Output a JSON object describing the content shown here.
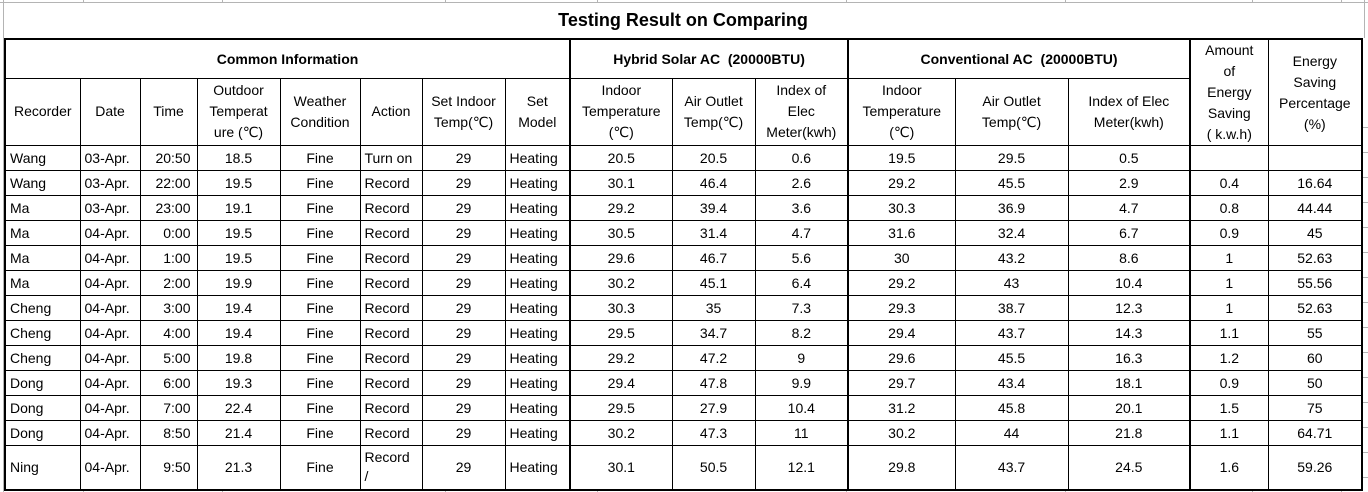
{
  "title": "Testing Result on Comparing",
  "sections": {
    "common": "Common Information",
    "hybrid": "Hybrid Solar AC  (20000BTU)",
    "conventional": "Conventional AC  (20000BTU)",
    "amount": "Amount\nof\nEnergy\nSaving\n( k.w.h)",
    "percentage": "Energy\nSaving\nPercentage\n(%)"
  },
  "columns": [
    "Recorder",
    "Date",
    "Time",
    "Outdoor\nTemperat\nure (℃)",
    "Weather\nCondition",
    "Action",
    "Set Indoor\nTemp(℃)",
    "Set\nModel",
    "Indoor\nTemperature\n(℃)",
    "Air Outlet\nTemp(℃)",
    "Index of\nElec\nMeter(kwh)",
    "Indoor\nTemperature\n(℃)",
    "Air Outlet\nTemp(℃)",
    "Index of Elec\nMeter(kwh)"
  ],
  "rows": [
    [
      "Wang",
      "03-Apr.",
      "20:50",
      "18.5",
      "Fine",
      "Turn on",
      "29",
      "Heating",
      "20.5",
      "20.5",
      "0.6",
      "19.5",
      "29.5",
      "0.5",
      "",
      ""
    ],
    [
      "Wang",
      "03-Apr.",
      "22:00",
      "19.5",
      "Fine",
      "Record",
      "29",
      "Heating",
      "30.1",
      "46.4",
      "2.6",
      "29.2",
      "45.5",
      "2.9",
      "0.4",
      "16.64"
    ],
    [
      "Ma",
      "03-Apr.",
      "23:00",
      "19.1",
      "Fine",
      "Record",
      "29",
      "Heating",
      "29.2",
      "39.4",
      "3.6",
      "30.3",
      "36.9",
      "4.7",
      "0.8",
      "44.44"
    ],
    [
      "Ma",
      "04-Apr.",
      "0:00",
      "19.5",
      "Fine",
      "Record",
      "29",
      "Heating",
      "30.5",
      "31.4",
      "4.7",
      "31.6",
      "32.4",
      "6.7",
      "0.9",
      "45"
    ],
    [
      "Ma",
      "04-Apr.",
      "1:00",
      "19.5",
      "Fine",
      "Record",
      "29",
      "Heating",
      "29.6",
      "46.7",
      "5.6",
      "30",
      "43.2",
      "8.6",
      "1",
      "52.63"
    ],
    [
      "Ma",
      "04-Apr.",
      "2:00",
      "19.9",
      "Fine",
      "Record",
      "29",
      "Heating",
      "30.2",
      "45.1",
      "6.4",
      "29.2",
      "43",
      "10.4",
      "1",
      "55.56"
    ],
    [
      "Cheng",
      "04-Apr.",
      "3:00",
      "19.4",
      "Fine",
      "Record",
      "29",
      "Heating",
      "30.3",
      "35",
      "7.3",
      "29.3",
      "38.7",
      "12.3",
      "1",
      "52.63"
    ],
    [
      "Cheng",
      "04-Apr.",
      "4:00",
      "19.4",
      "Fine",
      "Record",
      "29",
      "Heating",
      "29.5",
      "34.7",
      "8.2",
      "29.4",
      "43.7",
      "14.3",
      "1.1",
      "55"
    ],
    [
      "Cheng",
      "04-Apr.",
      "5:00",
      "19.8",
      "Fine",
      "Record",
      "29",
      "Heating",
      "29.2",
      "47.2",
      "9",
      "29.6",
      "45.5",
      "16.3",
      "1.2",
      "60"
    ],
    [
      "Dong",
      "04-Apr.",
      "6:00",
      "19.3",
      "Fine",
      "Record",
      "29",
      "Heating",
      "29.4",
      "47.8",
      "9.9",
      "29.7",
      "43.4",
      "18.1",
      "0.9",
      "50"
    ],
    [
      "Dong",
      "04-Apr.",
      "7:00",
      "22.4",
      "Fine",
      "Record",
      "29",
      "Heating",
      "29.5",
      "27.9",
      "10.4",
      "31.2",
      "45.8",
      "20.1",
      "1.5",
      "75"
    ],
    [
      "Dong",
      "04-Apr.",
      "8:50",
      "21.4",
      "Fine",
      "Record",
      "29",
      "Heating",
      "30.2",
      "47.3",
      "11",
      "30.2",
      "44",
      "21.8",
      "1.1",
      "64.71"
    ],
    [
      "Ning",
      "04-Apr.",
      "9:50",
      "21.3",
      "Fine",
      "Record\n/",
      "29",
      "Heating",
      "30.1",
      "50.5",
      "12.1",
      "29.8",
      "43.7",
      "24.5",
      "1.6",
      "59.26"
    ]
  ],
  "colors": {
    "border": "#000000",
    "gridline": "#b4b4b4",
    "background": "#ffffff",
    "text": "#000000"
  }
}
